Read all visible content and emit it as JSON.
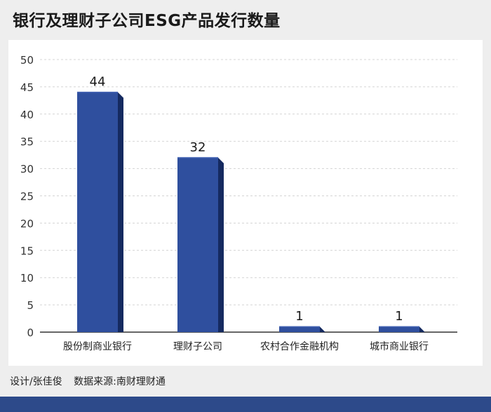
{
  "title": "银行及理财子公司ESG产品发行数量",
  "footer": {
    "designer": "设计/张佳俊",
    "source": "数据来源:南财理财通"
  },
  "colors": {
    "bar_front": "#2f4f9e",
    "bar_side": "#152a60",
    "bar_top": "#4463b3",
    "band": "#2d4a8a",
    "gridline": "#d4d4d4"
  },
  "chart_data": {
    "type": "bar",
    "title": "银行及理财子公司ESG产品发行数量",
    "xlabel": "",
    "ylabel": "",
    "categories": [
      "股份制商业银行",
      "理财子公司",
      "农村合作金融机构",
      "城市商业银行"
    ],
    "values": [
      44,
      32,
      1,
      1
    ],
    "data_labels": [
      "44",
      "32",
      "1",
      "1"
    ],
    "ylim": [
      0,
      50
    ],
    "yticks": [
      0,
      5,
      10,
      15,
      20,
      25,
      30,
      35,
      40,
      45,
      50
    ],
    "grid": true,
    "legend": "none"
  }
}
